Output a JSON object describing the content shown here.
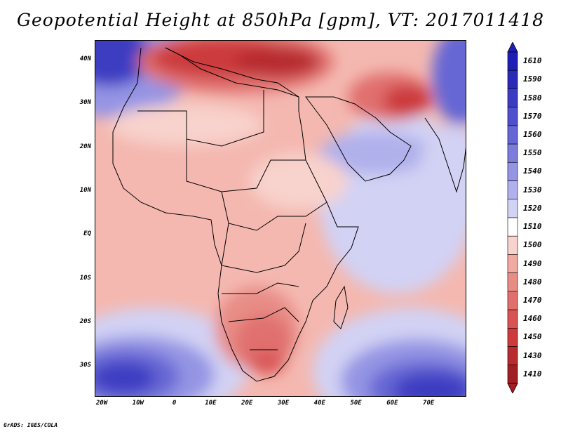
{
  "title": "Geopotential Height at 850hPa [gpm], VT: 2017011418",
  "footer": "GrADS: IGES/COLA",
  "map": {
    "lat_ticks": [
      "40N",
      "30N",
      "20N",
      "10N",
      "EQ",
      "10S",
      "20S",
      "30S"
    ],
    "lon_ticks": [
      "20W",
      "10W",
      "0",
      "10E",
      "20E",
      "30E",
      "40E",
      "50E",
      "60E",
      "70E"
    ]
  },
  "legend": {
    "values": [
      "1610",
      "1590",
      "1580",
      "1570",
      "1560",
      "1550",
      "1540",
      "1530",
      "1520",
      "1510",
      "1500",
      "1490",
      "1480",
      "1470",
      "1460",
      "1450",
      "1430",
      "1410"
    ],
    "colors": [
      "#1e1eb4",
      "#2a2ab8",
      "#3c3cc2",
      "#5050cc",
      "#6666d4",
      "#7c7cdc",
      "#9494e4",
      "#b0b0ec",
      "#d2d2f4",
      "#ffffff",
      "#f8d2cc",
      "#f0aaa2",
      "#e88c86",
      "#e0706e",
      "#d85454",
      "#cc3a3c",
      "#b82a2e",
      "#a01e24"
    ]
  }
}
